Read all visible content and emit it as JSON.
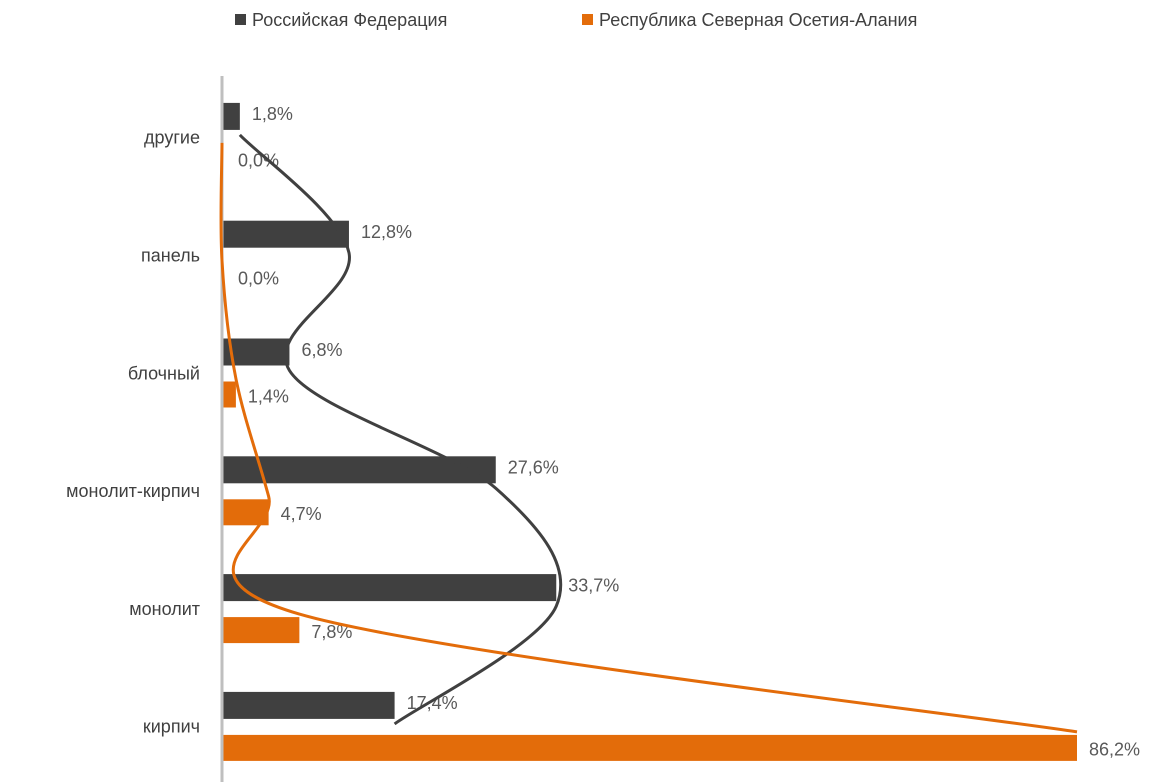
{
  "chart_data": {
    "type": "hbar",
    "categories": [
      "другие",
      "панель",
      "блочный",
      "монолит-кирпич",
      "монолит",
      "кирпич"
    ],
    "series": [
      {
        "name": "Российская Федерация",
        "color": "#404040",
        "values": [
          1.8,
          12.8,
          6.8,
          27.6,
          33.7,
          17.4
        ],
        "value_labels": [
          "1,8%",
          "12,8%",
          "6,8%",
          "27,6%",
          "33,7%",
          "17,4%"
        ]
      },
      {
        "name": "Республика Северная Осетия-Алания",
        "color": "#e36c0a",
        "values": [
          0.0,
          0.0,
          1.4,
          4.7,
          7.8,
          86.2
        ],
        "value_labels": [
          "0,0%",
          "0,0%",
          "1,4%",
          "4,7%",
          "7,8%",
          "86,2%"
        ]
      }
    ],
    "legend": "top",
    "trend_curves": true
  }
}
